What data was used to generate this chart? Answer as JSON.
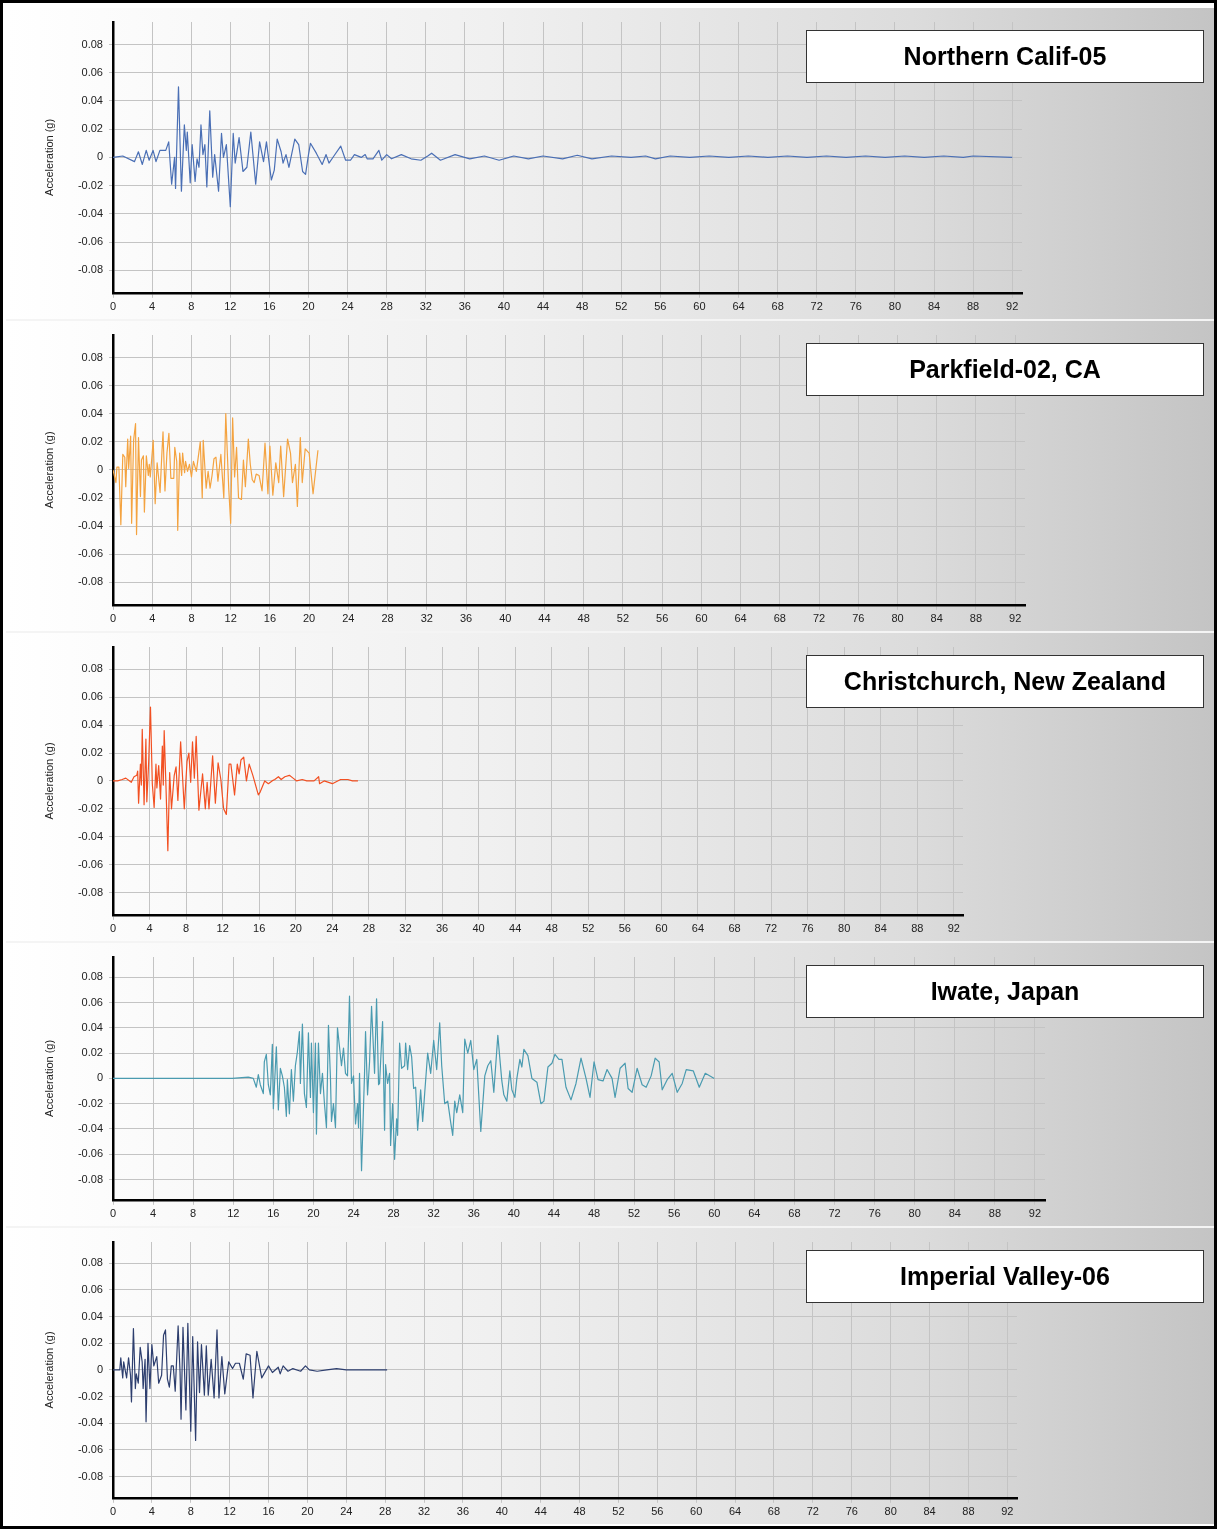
{
  "chart_data": [
    {
      "type": "line",
      "title": "Northern Calif-05",
      "ylabel": "Acceleration (g)",
      "grid": true,
      "marker": "none",
      "line_style": "solid",
      "xlim": [
        0,
        93
      ],
      "ylim": [
        -0.096,
        0.096
      ],
      "xticks": [
        0,
        4,
        8,
        12,
        16,
        20,
        24,
        28,
        32,
        36,
        40,
        44,
        48,
        52,
        56,
        60,
        64,
        68,
        72,
        76,
        80,
        84,
        88,
        92
      ],
      "yticks": [
        -0.08,
        -0.06,
        -0.04,
        -0.02,
        0,
        0.02,
        0.04,
        0.06,
        0.08
      ],
      "x": [
        0,
        1,
        2.2,
        2.6,
        3,
        3.4,
        3.7,
        4.1,
        4.4,
        4.8,
        5.4,
        5.7,
        6,
        6.3,
        6.4,
        6.7,
        7,
        7.3,
        7.5,
        7.6,
        7.9,
        8.1,
        8.4,
        8.6,
        8.8,
        9,
        9.2,
        9.4,
        9.6,
        9.9,
        10.2,
        10.4,
        10.8,
        11.1,
        11.3,
        11.6,
        12,
        12.3,
        12.5,
        12.9,
        13.3,
        13.7,
        14.1,
        14.6,
        15,
        15.4,
        15.7,
        16.2,
        16.5,
        16.8,
        17.2,
        17.4,
        17.7,
        18,
        18.6,
        19,
        19.4,
        19.7,
        20,
        20.2,
        20.8,
        21.4,
        21.8,
        22.1,
        22.6,
        23.3,
        23.8,
        24.3,
        24.7,
        25.4,
        25.8,
        26,
        26.6,
        27.2,
        27.5,
        28,
        28.5,
        29.5,
        30.5,
        31.5,
        32.2,
        32.6,
        33.5,
        35,
        36.5,
        38,
        39.5,
        41,
        42.5,
        44,
        46,
        47.5,
        49,
        51,
        53,
        54.5,
        55.5,
        57,
        59,
        61,
        63,
        65,
        67,
        69,
        71,
        73,
        75,
        77,
        79,
        81,
        83,
        85,
        87,
        88,
        92
      ],
      "series": [
        {
          "color": "#4a6fb5",
          "values": [
            0,
            0.001,
            -0.003,
            0.004,
            -0.005,
            0.005,
            -0.002,
            0.005,
            -0.003,
            0.005,
            0.005,
            0.011,
            -0.019,
            0,
            -0.022,
            0.05,
            -0.024,
            0.023,
            0.005,
            0.018,
            -0.018,
            0.009,
            -0.017,
            -0.001,
            -0.007,
            0.023,
            0.002,
            0.009,
            -0.021,
            0.033,
            -0.014,
            0.002,
            -0.024,
            0.017,
            0,
            0.009,
            -0.035,
            0.017,
            -0.004,
            0.014,
            -0.01,
            -0.007,
            0.018,
            -0.019,
            0.011,
            -0.003,
            0.011,
            -0.016,
            -0.009,
            0.013,
            0.004,
            -0.004,
            0.002,
            -0.007,
            0.013,
            0.009,
            -0.01,
            -0.012,
            0.002,
            0.01,
            0.003,
            -0.005,
            0.002,
            -0.004,
            0.001,
            0.008,
            -0.002,
            -0.002,
            0.002,
            0,
            0.002,
            -0.001,
            -0.001,
            0.005,
            -0.002,
            0.002,
            -0.001,
            0.002,
            -0.001,
            -0.002,
            0.001,
            0.003,
            -0.002,
            0.002,
            -0.001,
            0.001,
            -0.002,
            0.001,
            -0.001,
            0.001,
            -0.001,
            0.0015,
            -0.001,
            0.001,
            0,
            0.001,
            -0.001,
            0.001,
            0,
            0.001,
            0,
            0.001,
            0,
            0.001,
            0,
            0.001,
            0,
            0.001,
            0,
            0.001,
            0,
            0.001,
            0,
            0.001,
            0
          ]
        }
      ]
    },
    {
      "type": "line",
      "title": "Parkfield-02, CA",
      "ylabel": "Acceleration (g)",
      "grid": true,
      "marker": "none",
      "line_style": "solid",
      "xlim": [
        0,
        93
      ],
      "ylim": [
        -0.096,
        0.096
      ],
      "xticks": [
        0,
        4,
        8,
        12,
        16,
        20,
        24,
        28,
        32,
        36,
        40,
        44,
        48,
        52,
        56,
        60,
        64,
        68,
        72,
        76,
        80,
        84,
        88,
        92
      ],
      "yticks": [
        -0.08,
        -0.06,
        -0.04,
        -0.02,
        0,
        0.02,
        0.04,
        0.06,
        0.08
      ],
      "x": [
        0,
        0.3,
        0.4,
        0.6,
        0.8,
        1,
        1.2,
        1.3,
        1.5,
        1.6,
        1.8,
        1.9,
        2.1,
        2.3,
        2.4,
        2.6,
        2.8,
        2.9,
        3.1,
        3.2,
        3.4,
        3.6,
        3.7,
        3.8,
        4.1,
        4.3,
        4.5,
        4.8,
        5,
        5.1,
        5.3,
        5.5,
        5.7,
        5.9,
        6.2,
        6.3,
        6.5,
        6.6,
        6.8,
        7,
        7.1,
        7.3,
        7.4,
        7.6,
        7.8,
        8,
        8.2,
        8.5,
        8.9,
        9.1,
        9.2,
        9.5,
        9.7,
        9.9,
        10.1,
        10.3,
        10.5,
        10.7,
        11,
        11.3,
        11.5,
        11.8,
        12,
        12.2,
        12.4,
        12.6,
        12.8,
        13.1,
        13.3,
        13.5,
        13.8,
        14,
        14.2,
        14.4,
        14.6,
        14.9,
        15.2,
        15.5,
        15.8,
        16,
        16.3,
        16.6,
        16.9,
        17.1,
        17.4,
        17.8,
        18.1,
        18.3,
        18.6,
        18.8,
        19.1,
        19.3,
        19.6,
        20,
        20.4,
        20.9
      ],
      "series": [
        {
          "color": "#f4a340",
          "values": [
            0,
            -0.009,
            0.002,
            0.002,
            -0.039,
            0.011,
            0.009,
            -0.012,
            0.022,
            0.001,
            0.024,
            -0.038,
            0.021,
            0.033,
            -0.046,
            0.023,
            -0.019,
            0.007,
            0.01,
            -0.03,
            0.01,
            -0.004,
            0.004,
            -0.005,
            0.021,
            -0.024,
            0.005,
            -0.016,
            0.014,
            0.027,
            -0.015,
            0.012,
            0.026,
            -0.006,
            -0.006,
            0.016,
            0.006,
            -0.043,
            0.012,
            -0.004,
            0.012,
            -0.002,
            0.006,
            -0.001,
            0.004,
            -0.005,
            0.006,
            -0.001,
            0.02,
            -0.02,
            0.021,
            -0.013,
            -0.001,
            -0.013,
            -0.004,
            0.008,
            0.009,
            -0.008,
            0.011,
            -0.02,
            0.04,
            -0.013,
            -0.038,
            0.037,
            -0.005,
            0.016,
            -0.02,
            -0.021,
            0.007,
            -0.012,
            0.022,
            0.004,
            -0.007,
            -0.009,
            -0.003,
            -0.004,
            -0.015,
            0.019,
            -0.017,
            0.017,
            -0.018,
            0.005,
            -0.009,
            0.017,
            -0.019,
            0.022,
            0.012,
            -0.009,
            0.004,
            -0.026,
            0.023,
            -0.009,
            0.015,
            0.012,
            -0.017,
            0.014
          ]
        }
      ]
    },
    {
      "type": "line",
      "title": "Christchurch, New Zealand",
      "ylabel": "Acceleration (g)",
      "grid": true,
      "marker": "none",
      "line_style": "solid",
      "xlim": [
        0,
        93
      ],
      "ylim": [
        -0.096,
        0.096
      ],
      "xticks": [
        0,
        4,
        8,
        12,
        16,
        20,
        24,
        28,
        32,
        36,
        40,
        44,
        48,
        52,
        56,
        60,
        64,
        68,
        72,
        76,
        80,
        84,
        88,
        92
      ],
      "yticks": [
        -0.08,
        -0.06,
        -0.04,
        -0.02,
        0,
        0.02,
        0.04,
        0.06,
        0.08
      ],
      "x": [
        0,
        0.5,
        1,
        1.4,
        2,
        2.3,
        2.6,
        2.7,
        2.8,
        3,
        3.1,
        3.2,
        3.4,
        3.6,
        3.7,
        3.9,
        4.1,
        4.3,
        4.5,
        4.7,
        4.8,
        5,
        5.2,
        5.4,
        5.5,
        5.6,
        5.8,
        6,
        6.2,
        6.4,
        6.7,
        6.9,
        7.1,
        7.4,
        7.8,
        8.1,
        8.3,
        8.5,
        8.7,
        8.9,
        9.1,
        9.4,
        9.6,
        9.8,
        10.1,
        10.3,
        10.5,
        10.9,
        11.2,
        11.5,
        11.8,
        12.1,
        12.4,
        12.7,
        12.9,
        13.3,
        13.6,
        13.8,
        14,
        14.3,
        14.6,
        14.9,
        15.3,
        15.9,
        16.1,
        16.6,
        17,
        17.4,
        17.7,
        18.1,
        18.4,
        18.8,
        19.3,
        19.7,
        20.1,
        20.7,
        21.2,
        22,
        22.5,
        22.6,
        23.1,
        24,
        24.9,
        25.7,
        26.2,
        26.8
      ],
      "series": [
        {
          "color": "#f25022",
          "values": [
            0,
            0,
            0.001,
            0.002,
            -0.001,
            0.003,
            0.004,
            0.007,
            -0.016,
            0.012,
            -0.003,
            0.037,
            -0.017,
            0.03,
            -0.015,
            0.013,
            0.053,
            -0.002,
            -0.019,
            0.012,
            -0.005,
            0.011,
            -0.013,
            0.025,
            -0.003,
            0.036,
            -0.005,
            -0.05,
            0.006,
            -0.02,
            0.004,
            0.01,
            -0.014,
            0.028,
            -0.02,
            0.014,
            0.02,
            -0.001,
            0.028,
            0.002,
            0.032,
            -0.021,
            -0.008,
            0.005,
            -0.02,
            -0.001,
            -0.02,
            0.018,
            -0.016,
            0.013,
            0.001,
            -0.02,
            -0.024,
            0.012,
            0.012,
            -0.01,
            0.012,
            0.005,
            0.015,
            0.017,
            0,
            0.012,
            0.004,
            -0.01,
            -0.008,
            0,
            -0.002,
            0,
            0.001,
            0.003,
            0.001,
            0.003,
            0.004,
            0.002,
            0,
            0.001,
            0,
            0,
            0.003,
            -0.002,
            0,
            -0.002,
            0.001,
            0.001,
            0,
            0
          ]
        }
      ]
    },
    {
      "type": "line",
      "title": "Iwate, Japan",
      "ylabel": "Acceleration (g)",
      "grid": true,
      "marker": "none",
      "line_style": "solid",
      "xlim": [
        0,
        93
      ],
      "ylim": [
        -0.096,
        0.096
      ],
      "xticks": [
        0,
        4,
        8,
        12,
        16,
        20,
        24,
        28,
        32,
        36,
        40,
        44,
        48,
        52,
        56,
        60,
        64,
        68,
        72,
        76,
        80,
        84,
        88,
        92
      ],
      "yticks": [
        -0.08,
        -0.06,
        -0.04,
        -0.02,
        0,
        0.02,
        0.04,
        0.06,
        0.08
      ],
      "x": [
        0,
        11.9,
        13.5,
        14,
        14.3,
        14.5,
        14.7,
        15,
        15.1,
        15.3,
        15.5,
        15.7,
        15.9,
        16,
        16.3,
        16.5,
        16.7,
        16.9,
        17.1,
        17.3,
        17.4,
        17.6,
        17.8,
        18,
        18.2,
        18.4,
        18.6,
        18.7,
        18.9,
        19.1,
        19.3,
        19.5,
        19.7,
        19.8,
        20,
        20.2,
        20.3,
        20.5,
        20.7,
        20.9,
        21.1,
        21.3,
        21.5,
        21.7,
        21.8,
        22,
        22.2,
        22.4,
        22.6,
        22.8,
        23,
        23.2,
        23.4,
        23.6,
        23.8,
        24,
        24.2,
        24.4,
        24.5,
        24.6,
        24.8,
        25.1,
        25.2,
        25.4,
        25.6,
        25.8,
        26.1,
        26.3,
        26.5,
        26.6,
        26.9,
        27.1,
        27.2,
        27.4,
        27.6,
        27.7,
        27.9,
        28.1,
        28.3,
        28.4,
        28.6,
        28.8,
        29.1,
        29.2,
        29.4,
        29.6,
        29.8,
        30,
        30.2,
        30.4,
        30.7,
        30.9,
        31.1,
        31.4,
        31.7,
        32,
        32.3,
        32.6,
        32.8,
        33.1,
        33.4,
        33.7,
        33.9,
        34.1,
        34.3,
        34.6,
        34.9,
        35.1,
        35.4,
        35.7,
        36,
        36.3,
        36.7,
        37.1,
        37.4,
        37.7,
        38,
        38.4,
        38.8,
        39,
        39.3,
        39.6,
        39.8,
        40.1,
        40.3,
        40.6,
        40.8,
        41,
        41.4,
        41.8,
        42.3,
        42.7,
        43,
        43.4,
        43.8,
        44.1,
        44.5,
        44.8,
        45.2,
        45.7,
        46.2,
        46.7,
        47.2,
        47.6,
        48,
        48.4,
        48.9,
        49.3,
        49.8,
        50.1,
        50.6,
        51.1,
        51.4,
        51.8,
        52.3,
        52.8,
        53.2,
        53.7,
        54.1,
        54.5,
        54.8,
        55.3,
        55.8,
        56.3,
        56.8,
        57.2,
        57.9,
        58.5,
        59.1,
        60
      ],
      "series": [
        {
          "color": "#4a9bb0",
          "values": [
            0,
            0,
            0.001,
            0,
            -0.007,
            0.003,
            -0.005,
            -0.012,
            0.013,
            0.019,
            -0.005,
            -0.013,
            0.027,
            -0.024,
            0.025,
            -0.025,
            0.008,
            0.002,
            -0.007,
            -0.03,
            -0.001,
            -0.028,
            0.007,
            -0.018,
            0.01,
            0.021,
            0.037,
            -0.004,
            0.043,
            -0.012,
            -0.023,
            0.036,
            -0.015,
            0.028,
            -0.027,
            0.028,
            -0.044,
            0.028,
            -0.012,
            0.004,
            -0.02,
            -0.039,
            0.042,
            0,
            -0.034,
            -0.02,
            -0.039,
            0.04,
            0.025,
            0.01,
            0.024,
            0.004,
            0.002,
            0.065,
            -0.004,
            0.002,
            -0.036,
            -0.02,
            -0.039,
            0.004,
            -0.073,
            0.004,
            0.037,
            -0.013,
            0.013,
            0.057,
            0.004,
            0.063,
            -0.005,
            -0.004,
            0.045,
            -0.041,
            0.011,
            -0.004,
            0.004,
            -0.053,
            -0.02,
            -0.064,
            -0.032,
            -0.045,
            0.028,
            0.008,
            0.01,
            0.028,
            0.007,
            0.026,
            0.017,
            -0.008,
            -0.007,
            -0.041,
            -0.009,
            -0.034,
            -0.012,
            0.02,
            0.004,
            0.03,
            0.007,
            0.044,
            0.01,
            -0.02,
            -0.018,
            -0.035,
            -0.045,
            -0.018,
            -0.027,
            -0.013,
            -0.027,
            0.031,
            0.02,
            0.03,
            0.007,
            0.015,
            -0.042,
            0.002,
            0.01,
            0.014,
            -0.011,
            0.034,
            -0.002,
            -0.013,
            -0.018,
            0.006,
            -0.009,
            -0.015,
            0,
            0.015,
            0.009,
            0.023,
            0.018,
            0,
            -0.003,
            -0.02,
            -0.018,
            0.009,
            0.012,
            0.019,
            0.015,
            0.015,
            -0.007,
            -0.017,
            -0.004,
            0.016,
            0,
            -0.015,
            0.013,
            -0.001,
            -0.002,
            0.007,
            0,
            -0.015,
            0.008,
            0.012,
            -0.008,
            -0.011,
            0.008,
            -0.005,
            -0.007,
            0.002,
            0.016,
            0.013,
            -0.009,
            -0.001,
            0.004,
            -0.011,
            -0.004,
            0.007,
            0.006,
            -0.007,
            0.004,
            0
          ]
        }
      ]
    },
    {
      "type": "line",
      "title": "Imperial Valley-06",
      "ylabel": "Acceleration (g)",
      "grid": true,
      "marker": "none",
      "line_style": "solid",
      "xlim": [
        0,
        93
      ],
      "ylim": [
        -0.096,
        0.096
      ],
      "xticks": [
        0,
        4,
        8,
        12,
        16,
        20,
        24,
        28,
        32,
        36,
        40,
        44,
        48,
        52,
        56,
        60,
        64,
        68,
        72,
        76,
        80,
        84,
        88,
        92
      ],
      "yticks": [
        -0.08,
        -0.06,
        -0.04,
        -0.02,
        0,
        0.02,
        0.04,
        0.06,
        0.08
      ],
      "x": [
        0,
        0.7,
        0.8,
        1,
        1.1,
        1.4,
        1.6,
        1.8,
        1.9,
        2.1,
        2.3,
        2.4,
        2.6,
        2.8,
        3,
        3.1,
        3.3,
        3.4,
        3.6,
        3.8,
        4,
        4.2,
        4.5,
        4.7,
        5,
        5.2,
        5.4,
        5.6,
        5.8,
        6,
        6.2,
        6.4,
        6.7,
        6.9,
        7,
        7.2,
        7.5,
        7.7,
        8,
        8.2,
        8.5,
        8.7,
        8.9,
        9.1,
        9.4,
        9.6,
        9.8,
        10.1,
        10.4,
        10.7,
        10.9,
        11.2,
        11.5,
        11.9,
        12.3,
        12.6,
        13,
        13.4,
        13.7,
        14.1,
        14.4,
        14.8,
        15.3,
        16,
        16.4,
        17,
        17.2,
        17.5,
        18,
        18.5,
        19.3,
        19.8,
        20.2,
        21,
        22,
        23,
        24,
        25,
        27,
        28.2
      ],
      "series": [
        {
          "color": "#2d3e6e",
          "values": [
            0,
            0,
            0.009,
            -0.006,
            0.006,
            -0.006,
            0.009,
            -0.004,
            -0.024,
            0.031,
            -0.014,
            -0.003,
            -0.01,
            0.017,
            0.006,
            -0.014,
            0.008,
            -0.039,
            0.02,
            -0.014,
            0.019,
            0.003,
            0.01,
            -0.01,
            -0.004,
            0.026,
            0.03,
            -0.007,
            -0.013,
            0.003,
            0.003,
            -0.016,
            0.033,
            -0.002,
            -0.037,
            0.032,
            -0.03,
            0.035,
            -0.046,
            0.025,
            -0.053,
            0.021,
            -0.017,
            0.019,
            -0.019,
            0.018,
            -0.019,
            0.008,
            -0.021,
            0.03,
            -0.021,
            0.01,
            -0.018,
            0.006,
            0.001,
            0.005,
            0.005,
            -0.007,
            0.012,
            0.011,
            -0.021,
            0.014,
            -0.006,
            0.003,
            -0.002,
            0.002,
            -0.003,
            0.003,
            -0.001,
            0.001,
            -0.001,
            0.003,
            0,
            -0.001,
            0,
            0.001,
            0,
            0,
            0,
            0
          ]
        }
      ]
    }
  ]
}
